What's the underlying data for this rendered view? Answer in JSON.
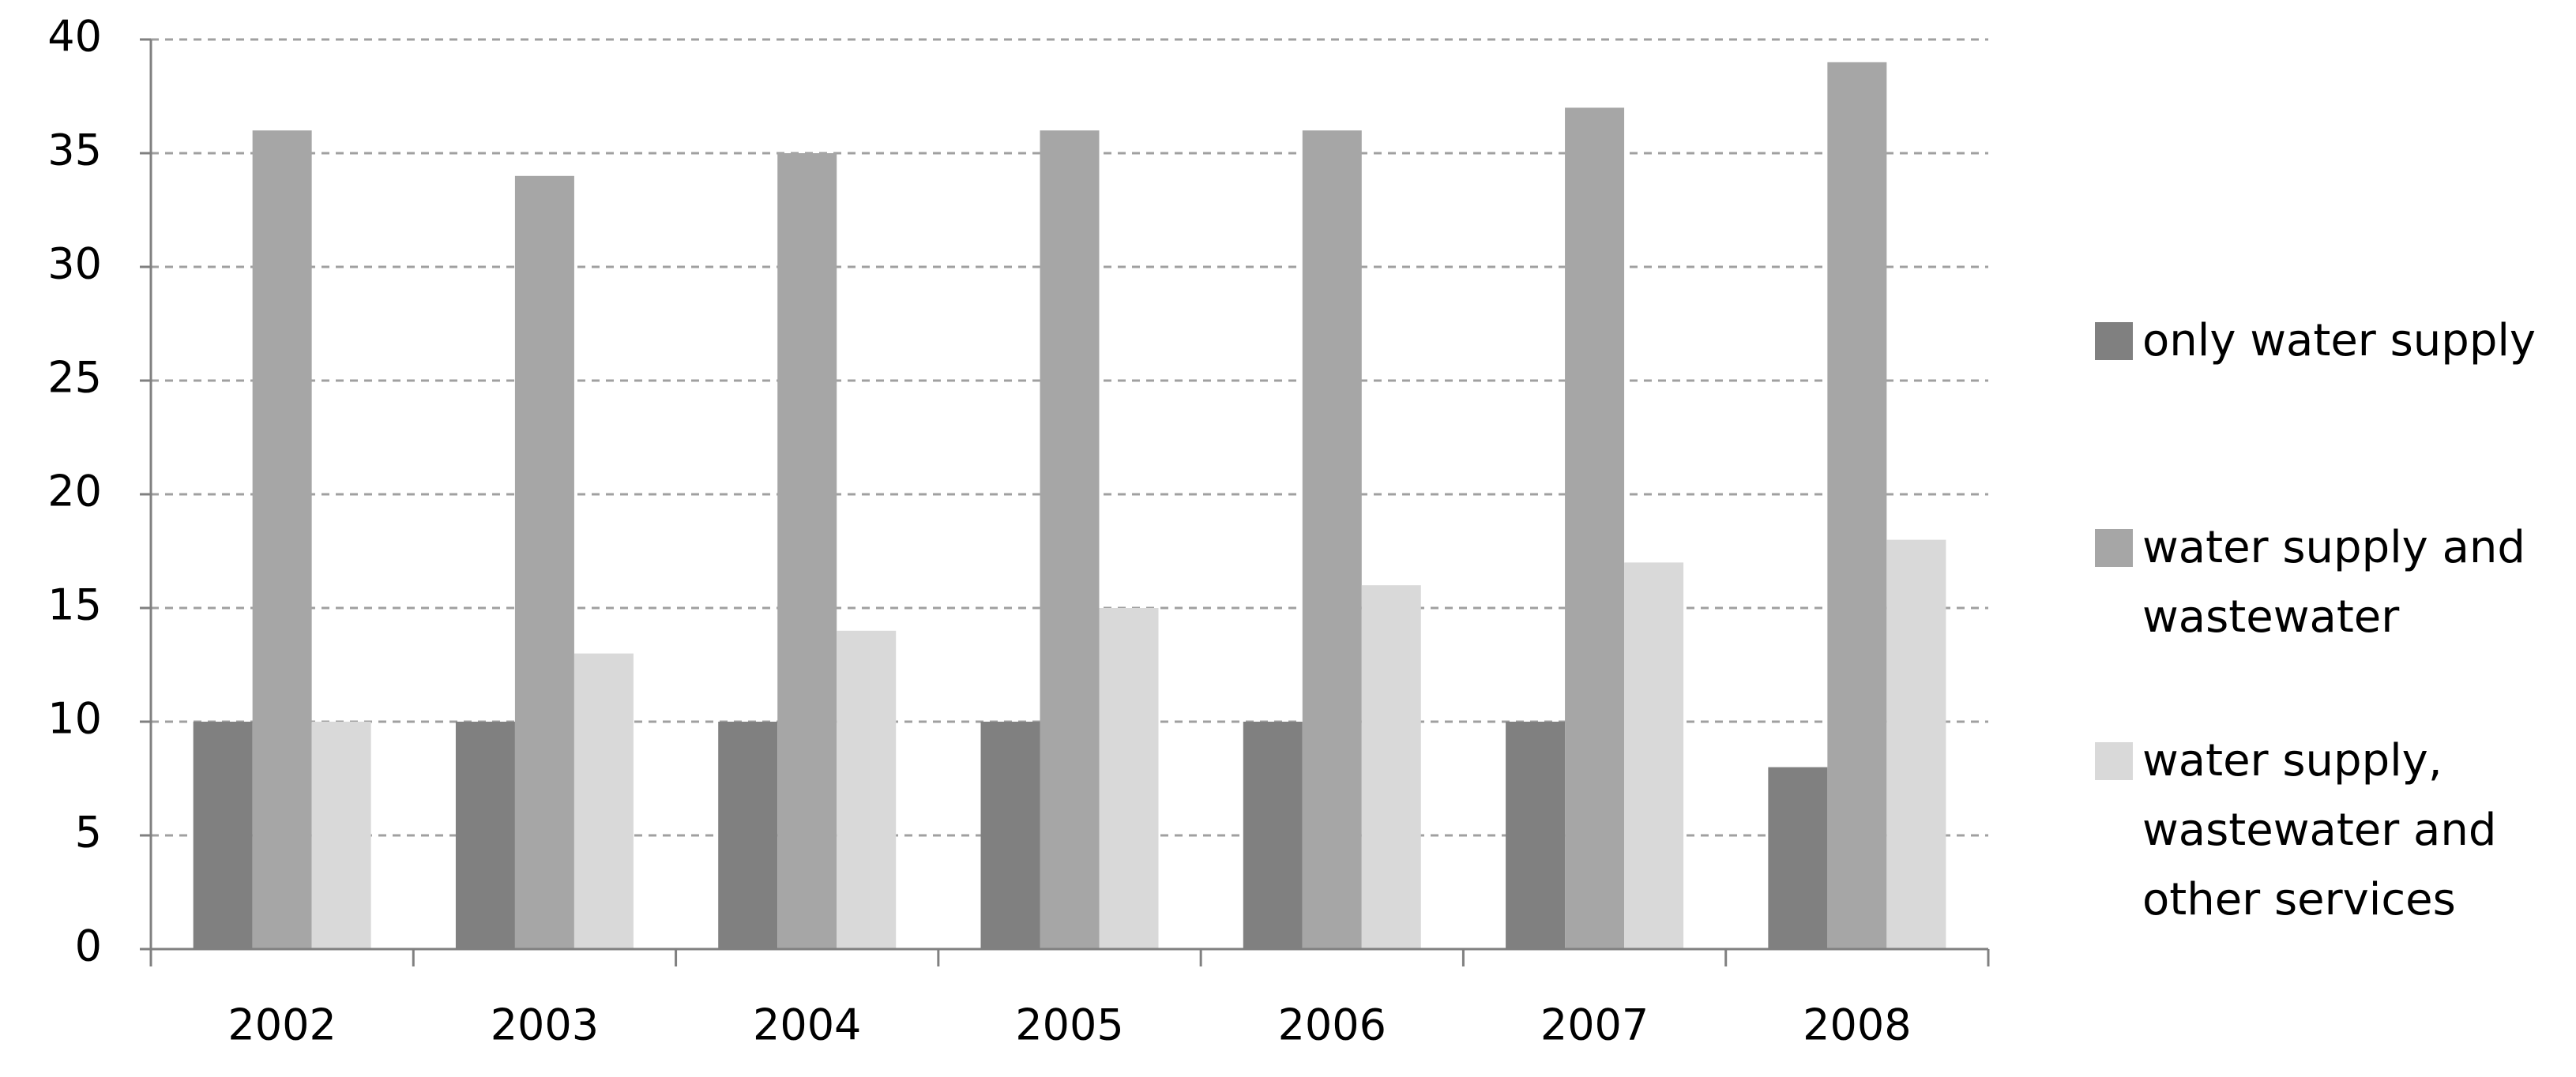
{
  "chart_data": {
    "type": "bar",
    "categories": [
      "2002",
      "2003",
      "2004",
      "2005",
      "2006",
      "2007",
      "2008"
    ],
    "series": [
      {
        "name": "only water supply",
        "color": "#808080",
        "values": [
          10,
          10,
          10,
          10,
          10,
          10,
          8
        ]
      },
      {
        "name": "water supply and wastewater",
        "color": "#a6a6a6",
        "values": [
          36,
          34,
          35,
          36,
          36,
          37,
          39
        ]
      },
      {
        "name": "water supply, wastewater and other services",
        "color": "#d9d9d9",
        "values": [
          10,
          13,
          14,
          15,
          16,
          17,
          18
        ]
      }
    ],
    "ylim": [
      0,
      40
    ],
    "yticks": [
      0,
      5,
      10,
      15,
      20,
      25,
      30,
      35,
      40
    ],
    "grid": true,
    "legend": "right"
  }
}
